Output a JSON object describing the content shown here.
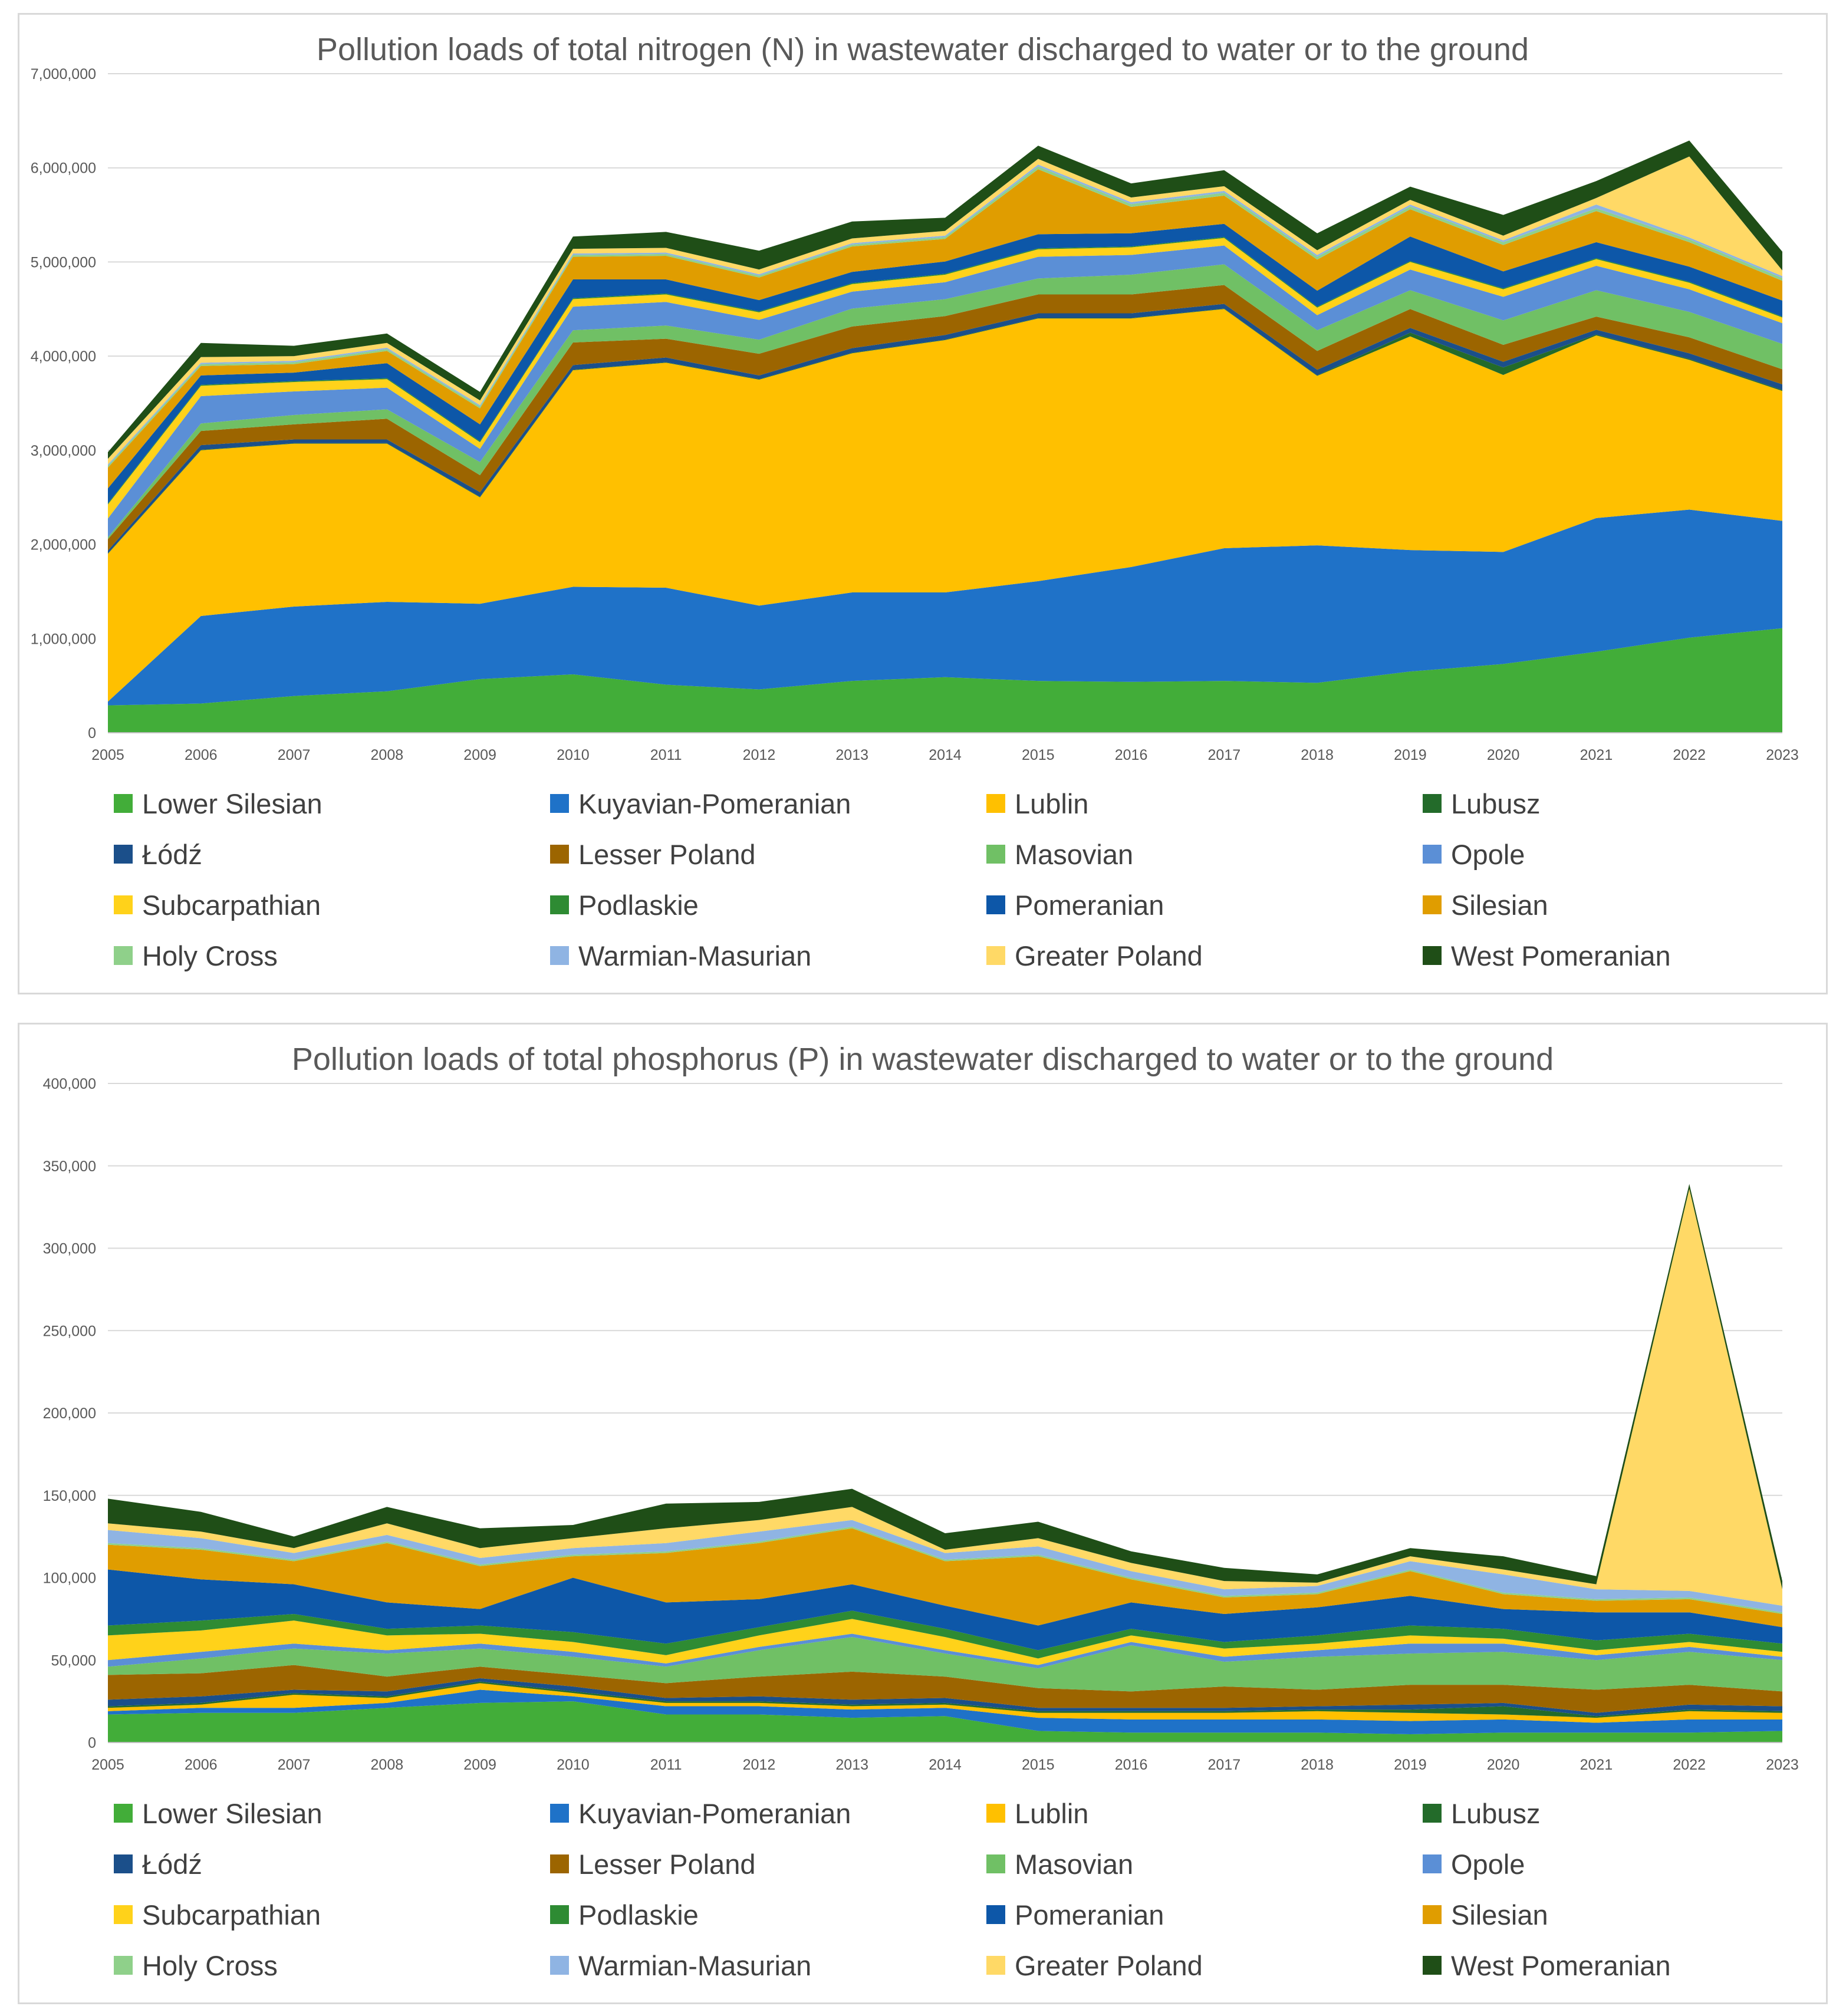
{
  "chart_data": [
    {
      "type": "area",
      "stacked": true,
      "title": "Pollution loads of total nitrogen (N) in wastewater discharged to water or to the ground",
      "xlabel": "",
      "ylabel": "",
      "ylim": [
        0,
        7000000
      ],
      "yticks": [
        0,
        1000000,
        2000000,
        3000000,
        4000000,
        5000000,
        6000000,
        7000000
      ],
      "ytick_labels": [
        "0",
        "1,000,000",
        "2,000,000",
        "3,000,000",
        "4,000,000",
        "5,000,000",
        "6,000,000",
        "7,000,000"
      ],
      "grid": true,
      "legend_position": "bottom",
      "categories": [
        "2005",
        "2006",
        "2007",
        "2008",
        "2009",
        "2010",
        "2011",
        "2012",
        "2013",
        "2014",
        "2015",
        "2016",
        "2017",
        "2018",
        "2019",
        "2020",
        "2021",
        "2022",
        "2023"
      ],
      "series": [
        {
          "name": "Lower Silesian",
          "color": "#42ad39",
          "values": [
            290000,
            310000,
            390000,
            440000,
            570000,
            620000,
            510000,
            460000,
            550000,
            590000,
            550000,
            540000,
            550000,
            530000,
            650000,
            730000,
            860000,
            1010000,
            1110000
          ]
        },
        {
          "name": "Kuyavian-Pomeranian",
          "color": "#1f72c8",
          "values": [
            40000,
            930000,
            950000,
            950000,
            800000,
            930000,
            1030000,
            890000,
            940000,
            900000,
            1060000,
            1220000,
            1410000,
            1460000,
            1290000,
            1190000,
            1420000,
            1360000,
            1140000
          ]
        },
        {
          "name": "Lublin",
          "color": "#ffc000",
          "values": [
            1570000,
            1760000,
            1730000,
            1680000,
            1130000,
            2300000,
            2390000,
            2400000,
            2540000,
            2680000,
            2790000,
            2640000,
            2540000,
            1800000,
            2270000,
            1880000,
            1940000,
            1590000,
            1380000
          ]
        },
        {
          "name": "Lubusz",
          "color": "#236b2a",
          "values": [
            5000,
            5000,
            5000,
            5000,
            5000,
            5000,
            5000,
            5000,
            5000,
            5000,
            5000,
            5000,
            5000,
            5000,
            40000,
            80000,
            10000,
            10000,
            10000
          ]
        },
        {
          "name": "Łódź",
          "color": "#1b4f8a",
          "values": [
            30000,
            50000,
            40000,
            40000,
            50000,
            50000,
            50000,
            40000,
            50000,
            50000,
            50000,
            50000,
            50000,
            60000,
            50000,
            60000,
            50000,
            60000,
            60000
          ]
        },
        {
          "name": "Lesser Poland",
          "color": "#9c6500",
          "values": [
            120000,
            150000,
            160000,
            220000,
            180000,
            240000,
            200000,
            230000,
            230000,
            200000,
            200000,
            200000,
            200000,
            200000,
            200000,
            180000,
            140000,
            170000,
            160000
          ]
        },
        {
          "name": "Masovian",
          "color": "#70c065",
          "values": [
            20000,
            80000,
            100000,
            100000,
            140000,
            130000,
            140000,
            150000,
            190000,
            180000,
            170000,
            210000,
            220000,
            220000,
            200000,
            260000,
            280000,
            270000,
            270000
          ]
        },
        {
          "name": "Opole",
          "color": "#5b8fd6",
          "values": [
            200000,
            290000,
            250000,
            230000,
            140000,
            250000,
            250000,
            210000,
            180000,
            180000,
            230000,
            210000,
            200000,
            160000,
            220000,
            250000,
            260000,
            240000,
            220000
          ]
        },
        {
          "name": "Subcarpathian",
          "color": "#ffd21a",
          "values": [
            150000,
            110000,
            100000,
            90000,
            70000,
            80000,
            80000,
            80000,
            80000,
            80000,
            80000,
            80000,
            80000,
            80000,
            80000,
            80000,
            70000,
            70000,
            60000
          ]
        },
        {
          "name": "Podlaskie",
          "color": "#2e8b33",
          "values": [
            10000,
            10000,
            10000,
            10000,
            10000,
            10000,
            10000,
            10000,
            10000,
            10000,
            10000,
            10000,
            10000,
            10000,
            10000,
            10000,
            10000,
            10000,
            10000
          ]
        },
        {
          "name": "Pomeranian",
          "color": "#0d57a8",
          "values": [
            160000,
            100000,
            90000,
            160000,
            180000,
            200000,
            150000,
            120000,
            120000,
            130000,
            150000,
            140000,
            140000,
            170000,
            260000,
            180000,
            170000,
            160000,
            170000
          ]
        },
        {
          "name": "Silesian",
          "color": "#e09d00",
          "values": [
            220000,
            100000,
            90000,
            130000,
            170000,
            240000,
            250000,
            240000,
            270000,
            240000,
            690000,
            280000,
            300000,
            330000,
            290000,
            280000,
            330000,
            260000,
            210000
          ]
        },
        {
          "name": "Holy Cross",
          "color": "#8fd08a",
          "values": [
            20000,
            20000,
            20000,
            20000,
            20000,
            20000,
            20000,
            20000,
            20000,
            20000,
            30000,
            30000,
            30000,
            30000,
            30000,
            30000,
            30000,
            30000,
            30000
          ]
        },
        {
          "name": "Warmian-Masurian",
          "color": "#8fb4e3",
          "values": [
            15000,
            15000,
            15000,
            15000,
            15000,
            15000,
            15000,
            15000,
            15000,
            15000,
            20000,
            20000,
            20000,
            20000,
            20000,
            20000,
            40000,
            20000,
            20000
          ]
        },
        {
          "name": "Greater Poland",
          "color": "#ffd966",
          "values": [
            60000,
            60000,
            50000,
            50000,
            50000,
            50000,
            50000,
            50000,
            50000,
            50000,
            60000,
            50000,
            50000,
            50000,
            50000,
            50000,
            70000,
            860000,
            60000
          ]
        },
        {
          "name": "West Pomeranian",
          "color": "#1f4e17",
          "values": [
            70000,
            150000,
            110000,
            100000,
            90000,
            130000,
            170000,
            200000,
            180000,
            140000,
            140000,
            150000,
            170000,
            180000,
            140000,
            220000,
            180000,
            170000,
            200000
          ]
        }
      ]
    },
    {
      "type": "area",
      "stacked": true,
      "title": "Pollution loads of total phosphorus (P) in wastewater discharged to water or to the ground",
      "xlabel": "",
      "ylabel": "",
      "ylim": [
        0,
        400000
      ],
      "yticks": [
        0,
        50000,
        100000,
        150000,
        200000,
        250000,
        300000,
        350000,
        400000
      ],
      "ytick_labels": [
        "0",
        "50,000",
        "100,000",
        "150,000",
        "200,000",
        "250,000",
        "300,000",
        "350,000",
        "400,000"
      ],
      "grid": true,
      "legend_position": "bottom",
      "categories": [
        "2005",
        "2006",
        "2007",
        "2008",
        "2009",
        "2010",
        "2011",
        "2012",
        "2013",
        "2014",
        "2015",
        "2016",
        "2017",
        "2018",
        "2019",
        "2020",
        "2021",
        "2022",
        "2023"
      ],
      "series": [
        {
          "name": "Lower Silesian",
          "color": "#42ad39",
          "values": [
            17000,
            18000,
            18000,
            21000,
            24000,
            25000,
            17000,
            17000,
            15000,
            16000,
            7000,
            6000,
            6000,
            6000,
            5000,
            6000,
            6000,
            6000,
            7000
          ]
        },
        {
          "name": "Kuyavian-Pomeranian",
          "color": "#1f72c8",
          "values": [
            2000,
            3000,
            3000,
            3000,
            8000,
            3000,
            5000,
            5000,
            5000,
            5000,
            8000,
            8000,
            8000,
            8000,
            8000,
            8000,
            6000,
            8000,
            7000
          ]
        },
        {
          "name": "Lublin",
          "color": "#ffc000",
          "values": [
            2000,
            2000,
            8000,
            3000,
            4000,
            2000,
            2000,
            2000,
            2000,
            2000,
            3000,
            4000,
            4000,
            5000,
            5000,
            3000,
            3000,
            5000,
            4000
          ]
        },
        {
          "name": "Lubusz",
          "color": "#236b2a",
          "values": [
            1000,
            1000,
            1000,
            1000,
            1000,
            1000,
            1000,
            1000,
            1000,
            1000,
            1000,
            1000,
            1000,
            1000,
            2000,
            5000,
            1000,
            1000,
            1000
          ]
        },
        {
          "name": "Łódź",
          "color": "#1b4f8a",
          "values": [
            4000,
            4000,
            2000,
            3000,
            2000,
            3000,
            2000,
            3000,
            3000,
            3000,
            2000,
            2000,
            2000,
            2000,
            3000,
            2000,
            2000,
            3000,
            3000
          ]
        },
        {
          "name": "Lesser Poland",
          "color": "#9c6500",
          "values": [
            15000,
            14000,
            15000,
            9000,
            7000,
            7000,
            9000,
            12000,
            17000,
            13000,
            12000,
            10000,
            13000,
            10000,
            12000,
            11000,
            14000,
            12000,
            9000
          ]
        },
        {
          "name": "Masovian",
          "color": "#70c065",
          "values": [
            5000,
            9000,
            10000,
            14000,
            11000,
            11000,
            10000,
            16000,
            21000,
            14000,
            12000,
            28000,
            15000,
            20000,
            19000,
            20000,
            18000,
            20000,
            19000
          ]
        },
        {
          "name": "Opole",
          "color": "#5b8fd6",
          "values": [
            4000,
            4000,
            3000,
            2000,
            3000,
            3000,
            2000,
            2000,
            2000,
            2000,
            2000,
            2000,
            3000,
            4000,
            6000,
            5000,
            3000,
            3000,
            2000
          ]
        },
        {
          "name": "Subcarpathian",
          "color": "#ffd21a",
          "values": [
            15000,
            13000,
            14000,
            9000,
            6000,
            6000,
            5000,
            7000,
            9000,
            8000,
            4000,
            4000,
            5000,
            4000,
            5000,
            3000,
            3000,
            3000,
            3000
          ]
        },
        {
          "name": "Podlaskie",
          "color": "#2e8b33",
          "values": [
            6000,
            6000,
            4000,
            4000,
            5000,
            6000,
            7000,
            5000,
            5000,
            5000,
            5000,
            4000,
            4000,
            5000,
            6000,
            6000,
            6000,
            5000,
            5000
          ]
        },
        {
          "name": "Pomeranian",
          "color": "#0d57a8",
          "values": [
            34000,
            25000,
            18000,
            16000,
            10000,
            33000,
            25000,
            17000,
            16000,
            14000,
            15000,
            16000,
            17000,
            17000,
            18000,
            12000,
            17000,
            13000,
            10000
          ]
        },
        {
          "name": "Silesian",
          "color": "#e09d00",
          "values": [
            15000,
            18000,
            14000,
            36000,
            26000,
            13000,
            30000,
            34000,
            34000,
            27000,
            42000,
            14000,
            10000,
            8000,
            15000,
            9000,
            7000,
            8000,
            8000
          ]
        },
        {
          "name": "Holy Cross",
          "color": "#8fd08a",
          "values": [
            1000,
            1000,
            1000,
            1000,
            1000,
            1000,
            1000,
            1000,
            1000,
            1000,
            1000,
            1000,
            1000,
            1000,
            1000,
            1000,
            1000,
            1000,
            1000
          ]
        },
        {
          "name": "Warmian-Masurian",
          "color": "#8fb4e3",
          "values": [
            8000,
            6000,
            4000,
            4000,
            4000,
            4000,
            5000,
            6000,
            4000,
            4000,
            5000,
            4000,
            4000,
            4000,
            5000,
            11000,
            6000,
            4000,
            4000
          ]
        },
        {
          "name": "Greater Poland",
          "color": "#ffd966",
          "values": [
            4000,
            4000,
            3000,
            7000,
            6000,
            6000,
            9000,
            7000,
            8000,
            2000,
            5000,
            5000,
            5000,
            2000,
            3000,
            3000,
            3000,
            244000,
            10000
          ]
        },
        {
          "name": "West Pomeranian",
          "color": "#1f4e17",
          "values": [
            15000,
            12000,
            7000,
            10000,
            12000,
            8000,
            15000,
            11000,
            11000,
            10000,
            10000,
            7000,
            8000,
            5000,
            5000,
            8000,
            5000,
            3000,
            5000
          ]
        }
      ]
    }
  ]
}
